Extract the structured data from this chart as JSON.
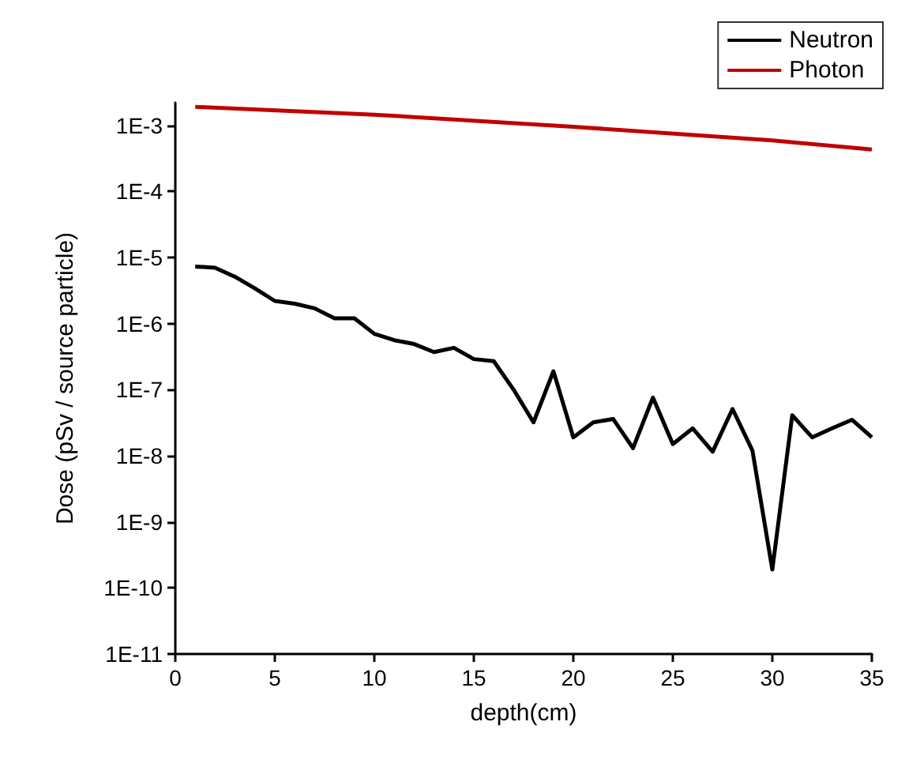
{
  "chart_data": {
    "type": "line",
    "xlabel": "depth(cm)",
    "ylabel": "Dose (pSv / source particle)",
    "log": "y",
    "grid": false,
    "legend": "top right",
    "marker": "none",
    "line_style": "solid",
    "xlim": [
      0,
      35
    ],
    "xticks": [
      0,
      5,
      10,
      15,
      20,
      25,
      30,
      35
    ],
    "ylim": [
      1e-11,
      0.0022
    ],
    "yticks": [
      {
        "value": 1e-11,
        "label": "1E-11"
      },
      {
        "value": 1e-10,
        "label": "1E-10"
      },
      {
        "value": 1e-09,
        "label": "1E-9"
      },
      {
        "value": 1e-08,
        "label": "1E-8"
      },
      {
        "value": 1e-07,
        "label": "1E-7"
      },
      {
        "value": 1e-06,
        "label": "1E-6"
      },
      {
        "value": 1e-05,
        "label": "1E-5"
      },
      {
        "value": 0.0001,
        "label": "1E-4"
      },
      {
        "value": 0.001,
        "label": "1E-3"
      }
    ],
    "series": [
      {
        "name": "Neutron",
        "color": "#000000",
        "x": [
          1,
          2,
          3,
          4,
          5,
          6,
          7,
          8,
          9,
          10,
          11,
          12,
          13,
          14,
          15,
          16,
          17,
          18,
          19,
          20,
          21,
          22,
          23,
          24,
          25,
          26,
          27,
          28,
          29,
          30,
          31,
          32,
          33,
          34,
          35
        ],
        "values": [
          7.3e-06,
          7e-06,
          5.1e-06,
          3.4e-06,
          2.2e-06,
          2e-06,
          1.7e-06,
          1.2e-06,
          1.2e-06,
          7e-07,
          5.6e-07,
          4.9e-07,
          3.7e-07,
          4.3e-07,
          2.9e-07,
          2.7e-07,
          1e-07,
          3.2e-08,
          1.9e-07,
          1.9e-08,
          3.2e-08,
          3.6e-08,
          1.3e-08,
          7.6e-08,
          1.5e-08,
          2.6e-08,
          1.15e-08,
          5.1e-08,
          1.2e-08,
          1.9e-10,
          4.1e-08,
          1.9e-08,
          2.6e-08,
          3.5e-08,
          1.9e-08
        ]
      },
      {
        "name": "Photon",
        "color": "#c00000",
        "x": [
          1,
          10,
          20,
          30,
          35
        ],
        "values": [
          0.0019,
          0.00145,
          0.00095,
          0.00059,
          0.00043
        ]
      }
    ]
  }
}
